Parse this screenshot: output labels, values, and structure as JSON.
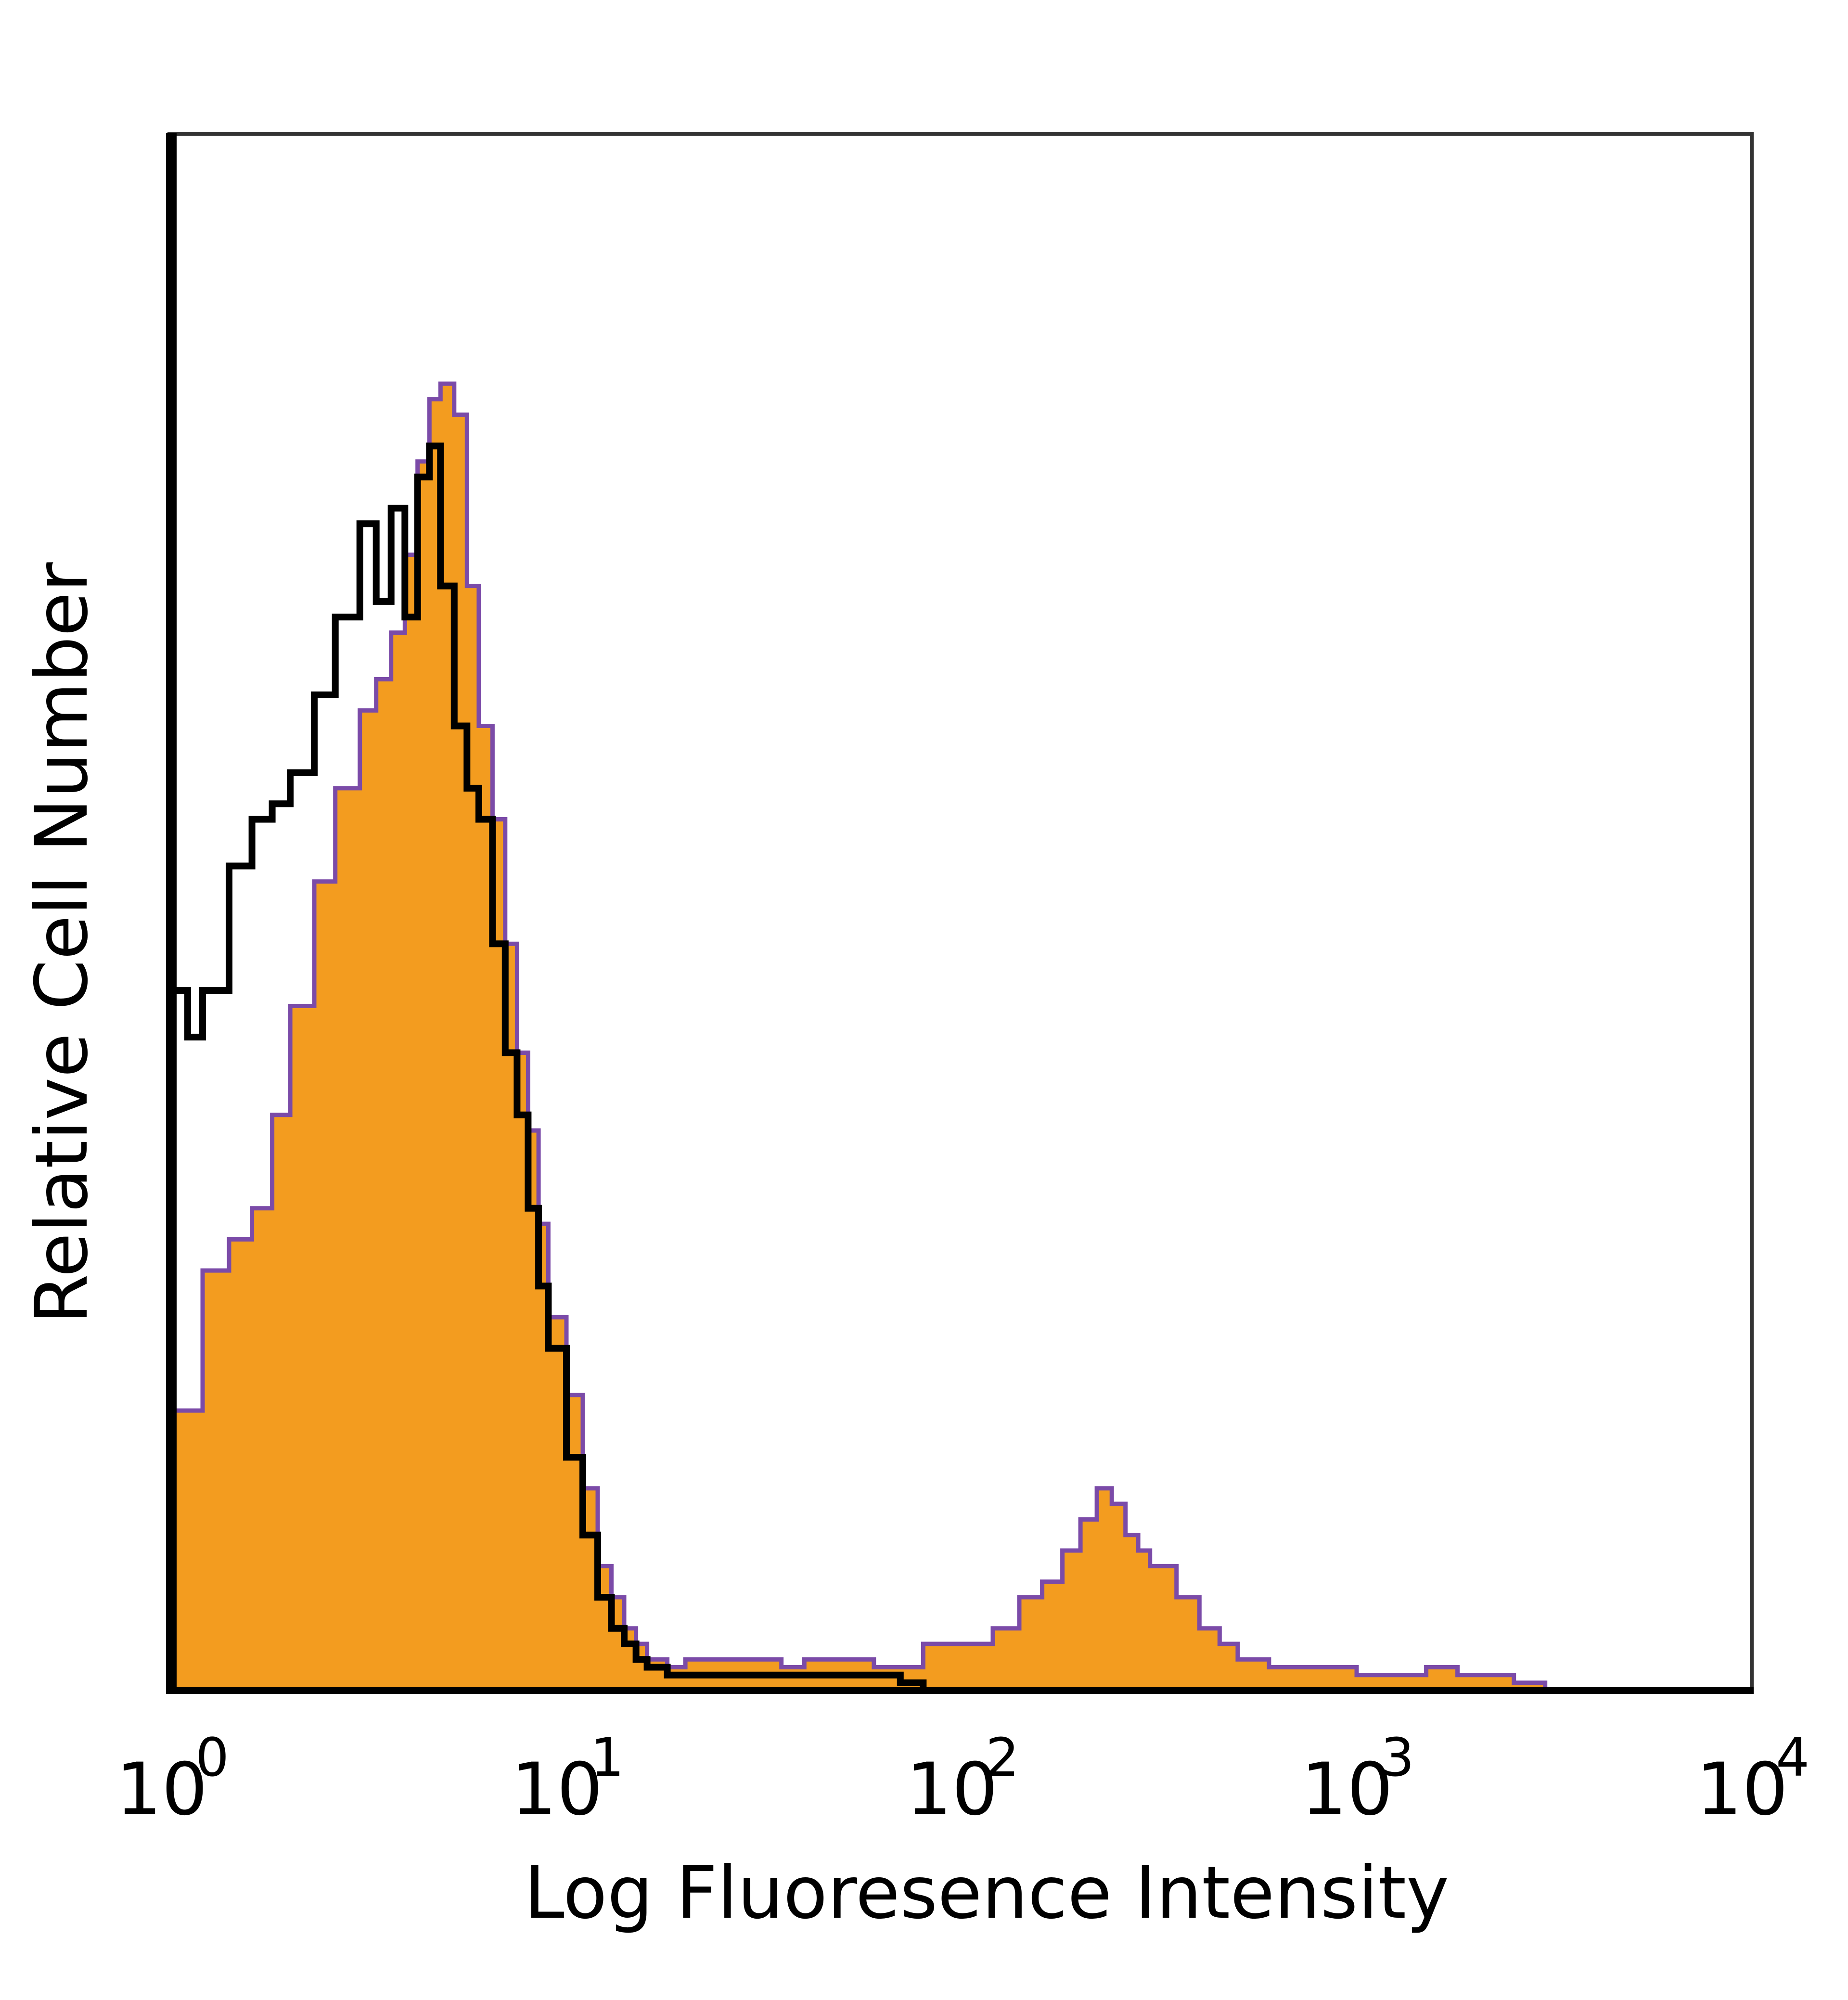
{
  "chart_data": {
    "type": "area",
    "title": "",
    "xlabel": "Log Fluoresence Intensity",
    "ylabel": "Relative Cell Number",
    "xscale": "log",
    "xlim": [
      1,
      10000
    ],
    "ylim": [
      0,
      100
    ],
    "grid": false,
    "legend": "none",
    "x_ticks": [
      {
        "base": "10",
        "exp": "0"
      },
      {
        "base": "10",
        "exp": "1"
      },
      {
        "base": "10",
        "exp": "2"
      },
      {
        "base": "10",
        "exp": "3"
      },
      {
        "base": "10",
        "exp": "4"
      }
    ],
    "series": [
      {
        "style": "filled",
        "fill": "#F39C1F",
        "stroke": "#7B4BA8",
        "x": [
          1,
          1.2,
          1.4,
          1.6,
          1.8,
          2,
          2.3,
          2.6,
          3,
          3.3,
          3.6,
          3.9,
          4.2,
          4.5,
          4.8,
          5.2,
          5.6,
          6,
          6.5,
          7,
          7.5,
          8,
          8.5,
          9,
          10,
          11,
          12,
          13,
          14,
          15,
          16,
          18,
          20,
          25,
          30,
          35,
          40,
          50,
          60,
          70,
          80,
          90,
          100,
          120,
          140,
          160,
          180,
          200,
          220,
          240,
          260,
          280,
          300,
          350,
          400,
          450,
          500,
          600,
          700,
          800,
          1000,
          1200,
          1500,
          1800,
          2000,
          2500,
          3000
        ],
        "values": [
          18,
          27,
          29,
          31,
          37,
          44,
          52,
          58,
          63,
          65,
          68,
          73,
          79,
          83,
          84,
          82,
          71,
          62,
          56,
          48,
          41,
          36,
          30,
          24,
          19,
          13,
          8,
          6,
          4,
          3,
          2,
          1.5,
          2,
          2,
          2,
          1.5,
          2,
          2,
          1.5,
          1.5,
          3,
          3,
          3,
          4,
          6,
          7,
          9,
          11,
          13,
          12,
          10,
          9,
          8,
          6,
          4,
          3,
          2,
          1.5,
          1.5,
          1.5,
          1,
          1,
          1.5,
          1,
          1,
          0.5,
          0
        ]
      },
      {
        "style": "outline",
        "stroke": "#000000",
        "x": [
          1,
          1.1,
          1.2,
          1.4,
          1.6,
          1.8,
          2,
          2.3,
          2.6,
          3,
          3.3,
          3.6,
          3.9,
          4.2,
          4.5,
          4.8,
          5.2,
          5.6,
          6,
          6.5,
          7,
          7.5,
          8,
          8.5,
          9,
          10,
          11,
          12,
          13,
          14,
          15,
          16,
          18,
          20,
          25,
          30,
          35,
          40,
          50,
          60,
          70,
          80
        ],
        "values": [
          45,
          42,
          45,
          53,
          56,
          57,
          59,
          64,
          69,
          75,
          70,
          76,
          69,
          78,
          80,
          71,
          62,
          58,
          56,
          48,
          41,
          37,
          31,
          26,
          22,
          15,
          10,
          6,
          4,
          3,
          2,
          1.5,
          1,
          1,
          1,
          1,
          1,
          1,
          1,
          1,
          0.5,
          0
        ]
      }
    ]
  }
}
